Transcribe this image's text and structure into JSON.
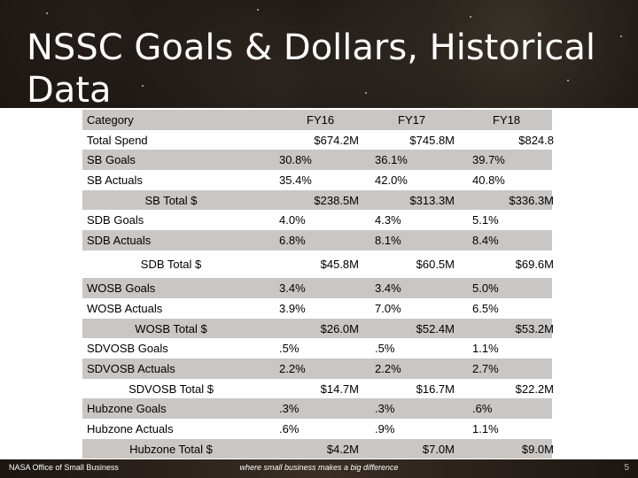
{
  "slide": {
    "title": "NSSC Goals & Dollars, Historical Data",
    "page_number": "5"
  },
  "footer": {
    "left_text": "NASA Office of Small Business",
    "center_text": "where small business makes a big difference"
  },
  "table": {
    "header": {
      "category": "Category",
      "fy16": "FY16",
      "fy17": "FY17",
      "fy18": "FY18"
    },
    "rows": [
      {
        "label": "Total Spend",
        "fy16": "$674.2M",
        "fy17": "$745.8M",
        "fy18": "$824.8"
      },
      {
        "label": "SB Goals",
        "fy16": "30.8%",
        "fy17": "36.1%",
        "fy18": "39.7%"
      },
      {
        "label": "SB Actuals",
        "fy16": "35.4%",
        "fy17": "42.0%",
        "fy18": "40.8%"
      },
      {
        "label": "SB Total $",
        "fy16": "$238.5M",
        "fy17": "$313.3M",
        "fy18": "$336.3M"
      },
      {
        "label": "SDB Goals",
        "fy16": "4.0%",
        "fy17": "4.3%",
        "fy18": "5.1%"
      },
      {
        "label": "SDB Actuals",
        "fy16": "6.8%",
        "fy17": "8.1%",
        "fy18": "8.4%"
      },
      {
        "label": "SDB Total $",
        "fy16": "$45.8M",
        "fy17": "$60.5M",
        "fy18": "$69.6M"
      },
      {
        "label": "WOSB Goals",
        "fy16": "3.4%",
        "fy17": "3.4%",
        "fy18": "5.0%"
      },
      {
        "label": "WOSB Actuals",
        "fy16": "3.9%",
        "fy17": "7.0%",
        "fy18": "6.5%"
      },
      {
        "label": "WOSB Total $",
        "fy16": "$26.0M",
        "fy17": "$52.4M",
        "fy18": "$53.2M"
      },
      {
        "label": "SDVOSB Goals",
        "fy16": ".5%",
        "fy17": ".5%",
        "fy18": "1.1%"
      },
      {
        "label": "SDVOSB Actuals",
        "fy16": "2.2%",
        "fy17": "2.2%",
        "fy18": "2.7%"
      },
      {
        "label": "SDVOSB Total $",
        "fy16": "$14.7M",
        "fy17": "$16.7M",
        "fy18": "$22.2M"
      },
      {
        "label": "Hubzone Goals",
        "fy16": ".3%",
        "fy17": ".3%",
        "fy18": ".6%"
      },
      {
        "label": "Hubzone Actuals",
        "fy16": ".6%",
        "fy17": ".9%",
        "fy18": "1.1%"
      },
      {
        "label": "Hubzone Total $",
        "fy16": "$4.2M",
        "fy17": "$7.0M",
        "fy18": "$9.0M"
      }
    ]
  }
}
